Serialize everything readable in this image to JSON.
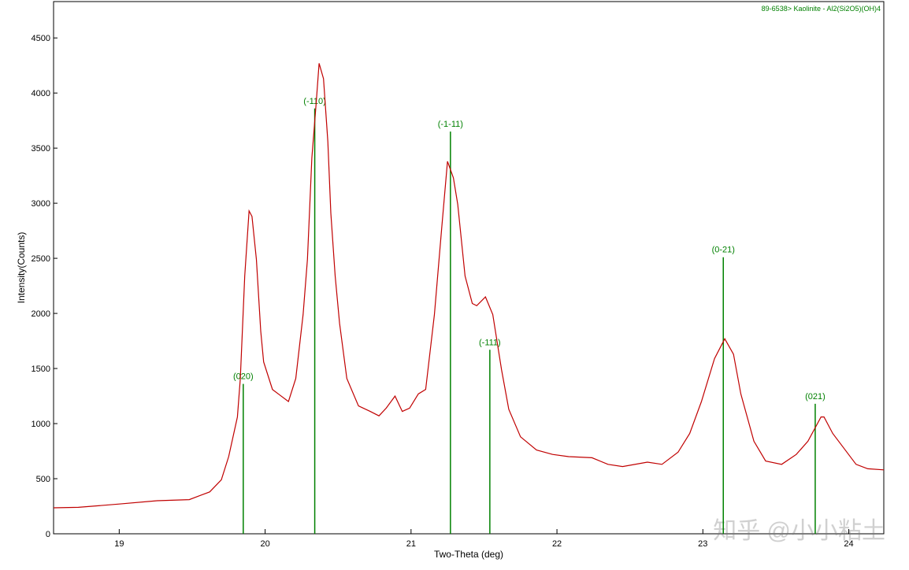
{
  "chart_data": {
    "type": "xrd",
    "x_label": "Two-Theta (deg)",
    "y_label": "Intensity(Counts)",
    "xlim": [
      18.55,
      24.24
    ],
    "ylim": [
      0,
      4830
    ],
    "xticks": [
      19,
      20,
      21,
      22,
      23,
      24
    ],
    "yticks": [
      0,
      500,
      1000,
      1500,
      2000,
      2500,
      3000,
      3500,
      4000,
      4500
    ],
    "pattern": {
      "color": "#c00000",
      "x": [
        18.55,
        18.72,
        19.0,
        19.26,
        19.48,
        19.62,
        19.7,
        19.75,
        19.81,
        19.83,
        19.86,
        19.89,
        19.91,
        19.94,
        19.97,
        19.99,
        20.05,
        20.1,
        20.16,
        20.21,
        20.26,
        20.29,
        20.32,
        20.35,
        20.37,
        20.4,
        20.43,
        20.45,
        20.48,
        20.51,
        20.56,
        20.64,
        20.72,
        20.78,
        20.83,
        20.89,
        20.94,
        20.99,
        21.05,
        21.1,
        21.16,
        21.21,
        21.25,
        21.29,
        21.32,
        21.37,
        21.42,
        21.45,
        21.51,
        21.56,
        21.62,
        21.67,
        21.75,
        21.86,
        21.97,
        22.08,
        22.24,
        22.35,
        22.45,
        22.62,
        22.72,
        22.83,
        22.91,
        22.99,
        23.08,
        23.15,
        23.21,
        23.26,
        23.35,
        23.43,
        23.54,
        23.64,
        23.72,
        23.81,
        23.83,
        23.89,
        23.97,
        24.05,
        24.13,
        24.24
      ],
      "values": [
        236,
        240,
        270,
        300,
        310,
        380,
        490,
        700,
        1060,
        1410,
        2340,
        2930,
        2880,
        2490,
        1840,
        1560,
        1310,
        1260,
        1200,
        1410,
        1990,
        2490,
        3410,
        3910,
        4270,
        4130,
        3560,
        2910,
        2340,
        1910,
        1410,
        1160,
        1110,
        1070,
        1140,
        1250,
        1110,
        1140,
        1270,
        1310,
        1990,
        2770,
        3380,
        3230,
        2990,
        2340,
        2090,
        2070,
        2150,
        1990,
        1490,
        1130,
        880,
        760,
        720,
        700,
        690,
        630,
        610,
        650,
        630,
        740,
        910,
        1200,
        1590,
        1770,
        1630,
        1270,
        840,
        660,
        630,
        720,
        840,
        1060,
        1060,
        910,
        770,
        630,
        590,
        580
      ]
    },
    "reference": {
      "name": "89-6538> Kaolinite - Al2(Si2O5)(OH)4",
      "color": "#008000",
      "x": [
        19.85,
        20.34,
        21.27,
        21.54,
        23.14,
        23.77
      ],
      "values": [
        1360,
        3860,
        3650,
        1670,
        2510,
        1180
      ],
      "labels": [
        "(020)",
        "(-110)",
        "(-1-11)",
        "(-111)",
        "(0-21)",
        "(021)"
      ]
    },
    "watermark": "知乎 @小小粘土"
  }
}
